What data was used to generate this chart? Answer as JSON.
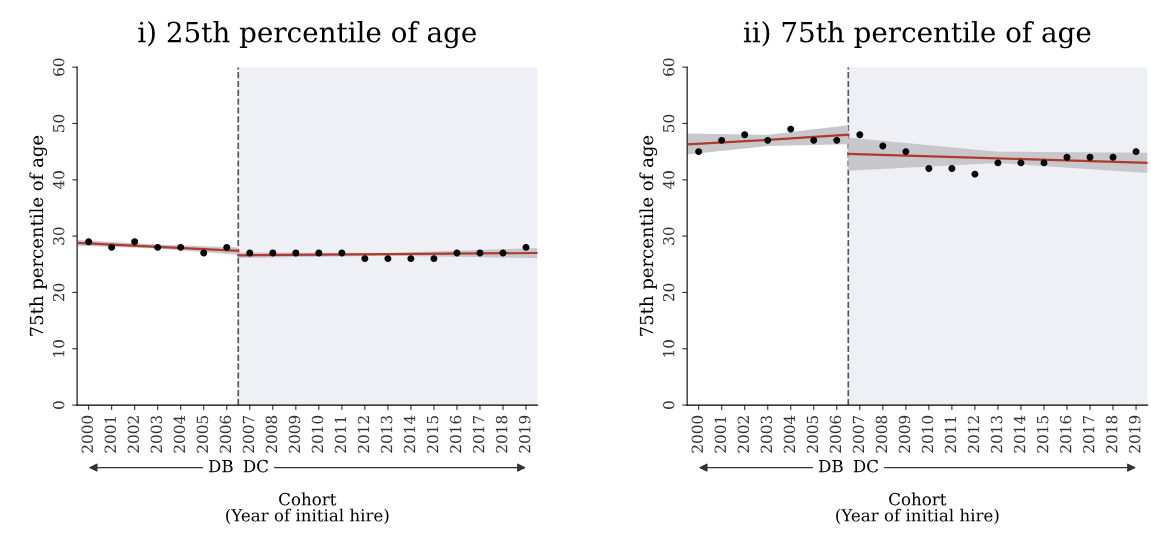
{
  "chart_data": [
    {
      "type": "scatter",
      "title": "i) 25th percentile of age",
      "xlabel": "Cohort\n(Year of initial hire)",
      "ylabel": "75th percentile of age",
      "x": [
        2000,
        2001,
        2002,
        2003,
        2004,
        2005,
        2006,
        2007,
        2008,
        2009,
        2010,
        2011,
        2012,
        2013,
        2014,
        2015,
        2016,
        2017,
        2018,
        2019
      ],
      "series": [
        {
          "type": "scatter",
          "color": "#000000",
          "marker": "circle",
          "values": [
            29,
            28,
            29,
            28,
            28,
            27,
            28,
            27,
            27,
            27,
            27,
            27,
            26,
            26,
            26,
            26,
            27,
            27,
            27,
            28
          ]
        },
        {
          "type": "line",
          "color": "#b03a2e",
          "x": [
            1999.5,
            2003,
            2006.5
          ],
          "values": [
            28.8,
            28.1,
            27.4
          ],
          "lower": [
            28.3,
            27.8,
            26.7
          ],
          "upper": [
            29.3,
            28.5,
            28.0
          ]
        },
        {
          "type": "line",
          "color": "#b03a2e",
          "x": [
            2006.5,
            2013,
            2019.5
          ],
          "values": [
            26.6,
            26.8,
            27.0
          ],
          "lower": [
            26.1,
            26.5,
            26.1
          ],
          "upper": [
            27.1,
            27.0,
            27.9
          ]
        }
      ],
      "xlim": [
        1999.5,
        2019.5
      ],
      "xticks": [
        2000,
        2001,
        2002,
        2003,
        2004,
        2005,
        2006,
        2007,
        2008,
        2009,
        2010,
        2011,
        2012,
        2013,
        2014,
        2015,
        2016,
        2017,
        2018,
        2019
      ],
      "ylim": [
        0,
        60
      ],
      "yticks": [
        0,
        10,
        20,
        30,
        40,
        50,
        60
      ],
      "ref_lines": [
        {
          "axis": "x",
          "value": 2006.5,
          "color": "#555555",
          "line_style": "dashed"
        }
      ],
      "bands": [
        {
          "axis": "x",
          "from": 2006.5,
          "to": 2019.5,
          "color": "#eff0f6"
        }
      ],
      "annotations": [
        "DB",
        "DC"
      ]
    },
    {
      "type": "scatter",
      "title": "ii) 75th percentile of age",
      "xlabel": "Cohort\n(Year of initial hire)",
      "ylabel": "75th percentile of age",
      "x": [
        2000,
        2001,
        2002,
        2003,
        2004,
        2005,
        2006,
        2007,
        2008,
        2009,
        2010,
        2011,
        2012,
        2013,
        2014,
        2015,
        2016,
        2017,
        2018,
        2019
      ],
      "series": [
        {
          "type": "scatter",
          "color": "#000000",
          "marker": "circle",
          "values": [
            45,
            47,
            48,
            47,
            49,
            47,
            47,
            48,
            46,
            45,
            42,
            42,
            41,
            43,
            43,
            43,
            44,
            44,
            44,
            45
          ]
        },
        {
          "type": "line",
          "color": "#b03a2e",
          "x": [
            1999.5,
            2003,
            2006.5
          ],
          "values": [
            46.3,
            47.1,
            48.0
          ],
          "lower": [
            44.5,
            46.0,
            46.3
          ],
          "upper": [
            48.2,
            48.0,
            49.7
          ]
        },
        {
          "type": "line",
          "color": "#b03a2e",
          "x": [
            2006.5,
            2013,
            2019.5
          ],
          "values": [
            44.6,
            43.8,
            43.0
          ],
          "lower": [
            41.6,
            43.0,
            41.2
          ],
          "upper": [
            47.5,
            45.0,
            44.8
          ]
        }
      ],
      "xlim": [
        1999.5,
        2019.5
      ],
      "xticks": [
        2000,
        2001,
        2002,
        2003,
        2004,
        2005,
        2006,
        2007,
        2008,
        2009,
        2010,
        2011,
        2012,
        2013,
        2014,
        2015,
        2016,
        2017,
        2018,
        2019
      ],
      "ylim": [
        0,
        60
      ],
      "yticks": [
        0,
        10,
        20,
        30,
        40,
        50,
        60
      ],
      "ref_lines": [
        {
          "axis": "x",
          "value": 2006.5,
          "color": "#555555",
          "line_style": "dashed"
        }
      ],
      "bands": [
        {
          "axis": "x",
          "from": 2006.5,
          "to": 2019.5,
          "color": "#eff0f6"
        }
      ],
      "annotations": [
        "DB",
        "DC"
      ]
    }
  ]
}
